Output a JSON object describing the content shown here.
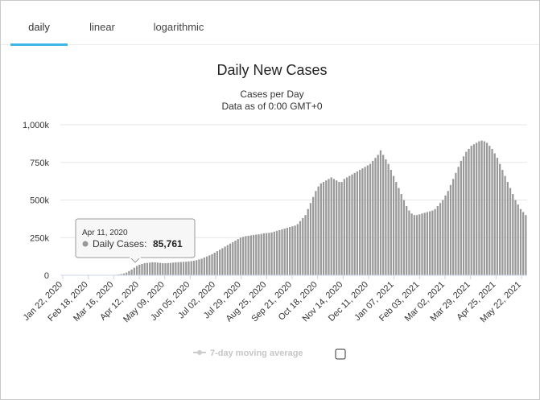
{
  "tabs": [
    {
      "label": "daily",
      "active": true
    },
    {
      "label": "linear",
      "active": false
    },
    {
      "label": "logarithmic",
      "active": false
    }
  ],
  "legend": {
    "label": "7-day moving average",
    "checked": false
  },
  "tooltip": {
    "date": "Apr 11, 2020",
    "label": "Daily Cases:",
    "value": "85,761"
  },
  "colors": {
    "bar": "#999999",
    "tab_underline": "#3cb6e6",
    "legend_inactive": "#cccccc"
  },
  "chart_data": {
    "type": "bar",
    "title": "Daily New Cases",
    "subtitle": [
      "Cases per Day",
      "Data as of 0:00 GMT+0"
    ],
    "ylabel": "",
    "xlabel": "",
    "ylim": [
      0,
      1000000
    ],
    "yticks": [
      0,
      250000,
      500000,
      750000,
      1000000
    ],
    "ytick_labels": [
      "0",
      "250k",
      "500k",
      "750k",
      "1,000k"
    ],
    "x_start": "Jan 22, 2020",
    "x_end": "Jun 13, 2021",
    "xtick_labels": [
      "Jan 22, 2020",
      "Feb 18, 2020",
      "Mar 16, 2020",
      "Apr 12, 2020",
      "May 09, 2020",
      "Jun 05, 2020",
      "Jul 02, 2020",
      "Jul 29, 2020",
      "Aug 25, 2020",
      "Sep 21, 2020",
      "Oct 18, 2020",
      "Nov 14, 2020",
      "Dec 11, 2020",
      "Jan 07, 2021",
      "Feb 03, 2021",
      "Mar 02, 2021",
      "Mar 29, 2021",
      "Apr 25, 2021",
      "May 22, 2021"
    ],
    "grid": true,
    "series": [
      {
        "values": [
          0,
          0,
          0,
          0,
          0,
          0,
          1000,
          3000,
          2000,
          2500,
          3000,
          3000,
          2500,
          2000,
          1500,
          1000,
          1000,
          1500,
          2000,
          1500,
          2000,
          3000,
          5000,
          8000,
          12000,
          18000,
          28000,
          38000,
          50000,
          62000,
          70000,
          75000,
          80000,
          82000,
          84000,
          86000,
          85761,
          84000,
          82000,
          80000,
          80000,
          81000,
          82000,
          84000,
          86000,
          87000,
          88000,
          89000,
          90000,
          92000,
          94000,
          96000,
          100000,
          105000,
          110000,
          118000,
          125000,
          132000,
          140000,
          150000,
          160000,
          170000,
          180000,
          190000,
          200000,
          210000,
          220000,
          230000,
          240000,
          250000,
          255000,
          260000,
          262000,
          265000,
          268000,
          270000,
          272000,
          275000,
          278000,
          280000,
          282000,
          285000,
          290000,
          295000,
          300000,
          305000,
          310000,
          315000,
          320000,
          325000,
          330000,
          340000,
          360000,
          380000,
          400000,
          440000,
          480000,
          520000,
          560000,
          590000,
          610000,
          620000,
          630000,
          640000,
          650000,
          640000,
          630000,
          620000,
          620000,
          640000,
          650000,
          660000,
          670000,
          680000,
          690000,
          700000,
          710000,
          720000,
          730000,
          740000,
          760000,
          780000,
          800000,
          830000,
          800000,
          770000,
          740000,
          700000,
          660000,
          620000,
          580000,
          540000,
          500000,
          460000,
          430000,
          410000,
          400000,
          400000,
          405000,
          410000,
          415000,
          420000,
          425000,
          430000,
          440000,
          460000,
          480000,
          500000,
          530000,
          560000,
          600000,
          640000,
          680000,
          720000,
          760000,
          790000,
          820000,
          840000,
          860000,
          870000,
          880000,
          890000,
          895000,
          890000,
          880000,
          860000,
          840000,
          810000,
          780000,
          740000,
          700000,
          660000,
          620000,
          580000,
          540000,
          500000,
          470000,
          440000,
          420000,
          400000
        ]
      }
    ]
  }
}
